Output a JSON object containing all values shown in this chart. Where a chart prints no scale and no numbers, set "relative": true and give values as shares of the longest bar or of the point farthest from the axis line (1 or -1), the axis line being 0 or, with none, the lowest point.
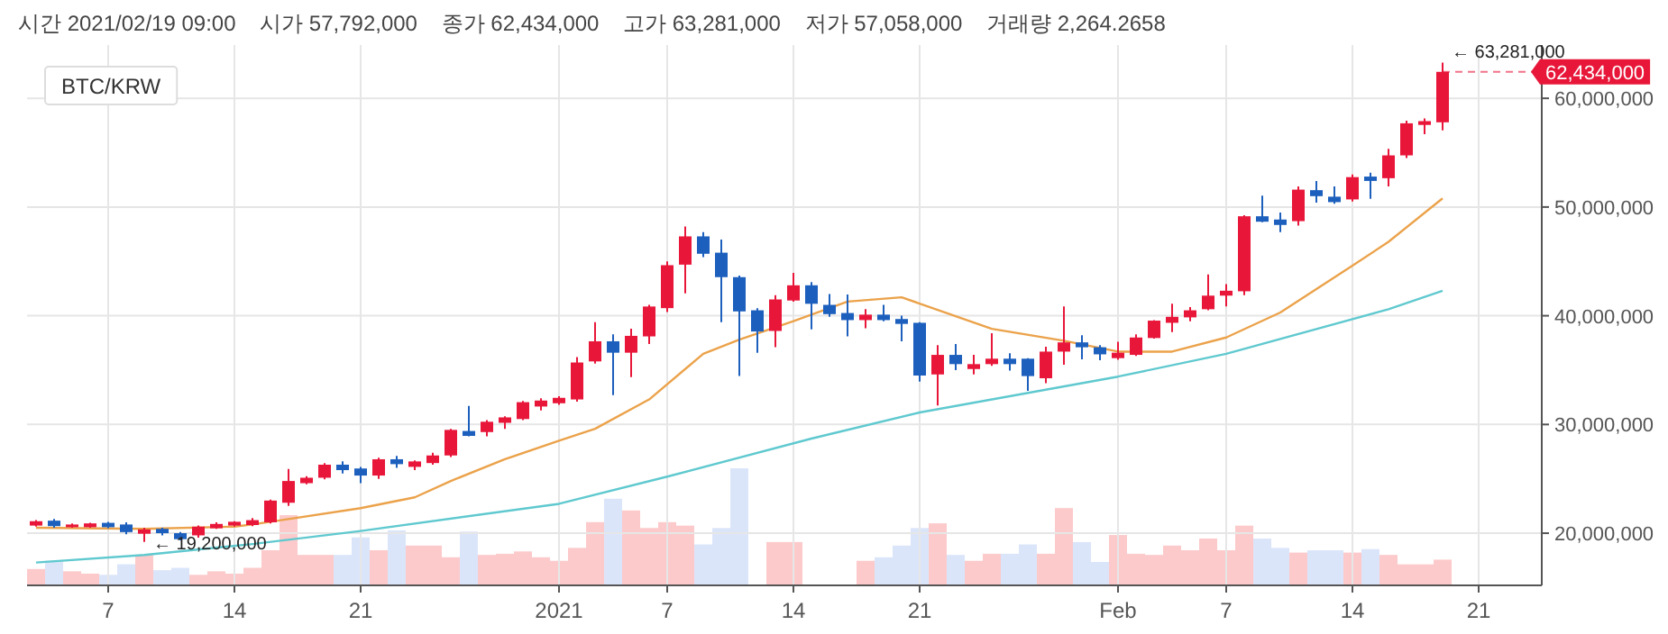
{
  "chart_data": [
    {
      "type": "candlestick",
      "title": "시간 2021/02/19 09:00    시가 57,792,000    종가 62,434,000    고가 63,281,000    저가 57,058,000    거래량 2,264.2658",
      "subtitle": "BTC/KRW",
      "x": [
        "2020-12-03",
        "2020-12-04",
        "2020-12-05",
        "2020-12-06",
        "2020-12-07",
        "2020-12-08",
        "2020-12-09",
        "2020-12-10",
        "2020-12-11",
        "2020-12-12",
        "2020-12-13",
        "2020-12-14",
        "2020-12-15",
        "2020-12-16",
        "2020-12-17",
        "2020-12-18",
        "2020-12-19",
        "2020-12-20",
        "2020-12-21",
        "2020-12-22",
        "2020-12-23",
        "2020-12-24",
        "2020-12-25",
        "2020-12-26",
        "2020-12-27",
        "2020-12-28",
        "2020-12-29",
        "2020-12-30",
        "2020-12-31",
        "2021-01-01",
        "2021-01-02",
        "2021-01-03",
        "2021-01-04",
        "2021-01-05",
        "2021-01-06",
        "2021-01-07",
        "2021-01-08",
        "2021-01-09",
        "2021-01-10",
        "2021-01-11",
        "2021-01-12",
        "2021-01-13",
        "2021-01-14",
        "2021-01-15",
        "2021-01-16",
        "2021-01-17",
        "2021-01-18",
        "2021-01-19",
        "2021-01-20",
        "2021-01-21",
        "2021-01-22",
        "2021-01-23",
        "2021-01-24",
        "2021-01-25",
        "2021-01-26",
        "2021-01-27",
        "2021-01-28",
        "2021-01-29",
        "2021-01-30",
        "2021-01-31",
        "2021-02-01",
        "2021-02-02",
        "2021-02-03",
        "2021-02-04",
        "2021-02-05",
        "2021-02-06",
        "2021-02-07",
        "2021-02-08",
        "2021-02-09",
        "2021-02-10",
        "2021-02-11",
        "2021-02-12",
        "2021-02-13",
        "2021-02-14",
        "2021-02-15",
        "2021-02-16",
        "2021-02-17",
        "2021-02-18",
        "2021-02-19"
      ],
      "xlim": [
        "2020-12-02T12:00",
        "2021-02-24T12:00"
      ],
      "xticks": [
        {
          "value": "2020-12-07",
          "label": "7"
        },
        {
          "value": "2020-12-14",
          "label": "14"
        },
        {
          "value": "2020-12-21",
          "label": "21"
        },
        {
          "value": "2021-01-01",
          "label": "2021"
        },
        {
          "value": "2021-01-07",
          "label": "7"
        },
        {
          "value": "2021-01-14",
          "label": "14"
        },
        {
          "value": "2021-01-21",
          "label": "21"
        },
        {
          "value": "2021-02-01",
          "label": "Feb"
        },
        {
          "value": "2021-02-07",
          "label": "7"
        },
        {
          "value": "2021-02-14",
          "label": "14"
        },
        {
          "value": "2021-02-21",
          "label": "21"
        }
      ],
      "ylim": [
        15200000,
        64900000
      ],
      "yticks": [
        {
          "value": 20000000,
          "label": "20,000,000"
        },
        {
          "value": 30000000,
          "label": "30,000,000"
        },
        {
          "value": 40000000,
          "label": "40,000,000"
        },
        {
          "value": 50000000,
          "label": "50,000,000"
        },
        {
          "value": 60000000,
          "label": "60,000,000"
        }
      ],
      "grid": true,
      "annotations": [
        {
          "text": "← 63,281,000",
          "x": "2021-02-19",
          "y": 63281000
        },
        {
          "text": "← 19,200,000",
          "x": "2020-12-09",
          "y": 19200000
        }
      ],
      "ref_lines": [
        {
          "axis": "y",
          "value": 62434000,
          "label": "62,434,000",
          "color": "#e8173a",
          "line_style": "dashed"
        }
      ],
      "series": [
        {
          "type": "line",
          "color": "#5fc9cf",
          "x": [
            "2020-12-03",
            "2020-12-09",
            "2020-12-15",
            "2020-12-21",
            "2021-01-01",
            "2021-01-07",
            "2021-01-15",
            "2021-01-21",
            "2021-02-01",
            "2021-02-07",
            "2021-02-16",
            "2021-02-19"
          ],
          "values": [
            17300000,
            18000000,
            19000000,
            20200000,
            22700000,
            25200000,
            28700000,
            31100000,
            34400000,
            36500000,
            40600000,
            42300000
          ]
        },
        {
          "type": "line",
          "color": "#eba24a",
          "x": [
            "2020-12-03",
            "2020-12-09",
            "2020-12-14",
            "2020-12-15",
            "2020-12-17",
            "2020-12-21",
            "2020-12-24",
            "2020-12-26",
            "2020-12-29",
            "2021-01-01",
            "2021-01-03",
            "2021-01-06",
            "2021-01-09",
            "2021-01-11",
            "2021-01-14",
            "2021-01-17",
            "2021-01-20",
            "2021-01-25",
            "2021-01-29",
            "2021-02-01",
            "2021-02-04",
            "2021-02-07",
            "2021-02-10",
            "2021-02-14",
            "2021-02-16",
            "2021-02-19"
          ],
          "values": [
            20500000,
            20400000,
            20600000,
            20800000,
            21300000,
            22300000,
            23300000,
            24800000,
            26800000,
            28500000,
            29600000,
            32300000,
            36500000,
            37800000,
            39500000,
            41300000,
            41700000,
            38800000,
            37700000,
            36700000,
            36700000,
            38000000,
            40300000,
            44600000,
            46800000,
            50800000
          ]
        },
        {
          "type": "candlestick",
          "ohlc": [
            [
              20700000,
              21200000,
              20600000,
              21100000
            ],
            [
              21150000,
              21300000,
              20500000,
              20650000
            ],
            [
              20550000,
              20900000,
              20500000,
              20800000
            ],
            [
              20550000,
              20950000,
              20500000,
              20900000
            ],
            [
              20950000,
              21050000,
              20450000,
              20550000
            ],
            [
              20800000,
              21000000,
              19900000,
              20100000
            ],
            [
              19950000,
              20500000,
              19200000,
              20350000
            ],
            [
              20400000,
              20500000,
              19800000,
              20000000
            ],
            [
              20000000,
              20100000,
              19350000,
              19450000
            ],
            [
              19800000,
              20700000,
              19600000,
              20600000
            ],
            [
              20450000,
              21000000,
              20400000,
              20850000
            ],
            [
              20700000,
              21100000,
              20600000,
              21050000
            ],
            [
              20750000,
              21400000,
              20650000,
              21200000
            ],
            [
              21000000,
              23100000,
              20900000,
              23000000
            ],
            [
              22800000,
              25900000,
              22500000,
              24800000
            ],
            [
              24600000,
              25250000,
              24500000,
              25100000
            ],
            [
              25100000,
              26450000,
              24950000,
              26300000
            ],
            [
              26300000,
              26600000,
              25500000,
              25800000
            ],
            [
              25950000,
              26100000,
              24600000,
              25300000
            ],
            [
              25300000,
              26950000,
              25000000,
              26800000
            ],
            [
              26800000,
              27100000,
              26000000,
              26350000
            ],
            [
              26100000,
              26700000,
              25800000,
              26600000
            ],
            [
              26450000,
              27400000,
              26300000,
              27150000
            ],
            [
              27150000,
              29600000,
              27000000,
              29500000
            ],
            [
              29400000,
              31700000,
              28900000,
              28950000
            ],
            [
              29300000,
              30400000,
              28900000,
              30250000
            ],
            [
              30150000,
              30750000,
              29600000,
              30650000
            ],
            [
              30500000,
              32150000,
              30400000,
              32050000
            ],
            [
              31650000,
              32400000,
              31300000,
              32200000
            ],
            [
              31950000,
              32600000,
              31800000,
              32450000
            ],
            [
              32300000,
              36200000,
              32100000,
              35700000
            ],
            [
              35800000,
              39400000,
              35600000,
              37650000
            ],
            [
              37650000,
              38300000,
              32700000,
              36600000
            ],
            [
              36600000,
              38800000,
              34350000,
              38150000
            ],
            [
              38100000,
              41000000,
              37400000,
              40850000
            ],
            [
              40700000,
              45000000,
              40350000,
              44650000
            ],
            [
              44700000,
              48200000,
              42050000,
              47300000
            ],
            [
              47300000,
              47700000,
              45400000,
              45700000
            ],
            [
              45800000,
              47000000,
              39400000,
              43550000
            ],
            [
              43550000,
              43700000,
              34450000,
              40400000
            ],
            [
              40500000,
              40700000,
              36600000,
              38550000
            ],
            [
              38600000,
              41900000,
              37100000,
              41500000
            ],
            [
              41400000,
              43950000,
              41300000,
              42800000
            ],
            [
              42800000,
              43100000,
              38750000,
              41100000
            ],
            [
              41000000,
              42000000,
              39900000,
              40150000
            ],
            [
              40250000,
              41950000,
              38100000,
              39600000
            ],
            [
              39600000,
              40600000,
              38850000,
              40100000
            ],
            [
              40100000,
              41000000,
              39500000,
              39600000
            ],
            [
              39700000,
              40000000,
              37650000,
              39250000
            ],
            [
              39350000,
              39400000,
              33950000,
              34500000
            ],
            [
              34600000,
              37300000,
              31750000,
              36400000
            ],
            [
              36400000,
              37400000,
              35000000,
              35550000
            ],
            [
              35100000,
              36400000,
              34600000,
              35550000
            ],
            [
              35550000,
              38400000,
              35400000,
              36050000
            ],
            [
              36050000,
              36550000,
              34950000,
              35550000
            ],
            [
              36050000,
              36100000,
              33100000,
              34450000
            ],
            [
              34250000,
              37150000,
              33800000,
              36700000
            ],
            [
              36700000,
              40850000,
              35500000,
              37550000
            ],
            [
              37550000,
              38200000,
              36000000,
              37100000
            ],
            [
              37100000,
              37300000,
              35900000,
              36450000
            ],
            [
              36100000,
              37600000,
              35950000,
              36600000
            ],
            [
              36400000,
              38300000,
              36300000,
              38000000
            ],
            [
              37950000,
              39600000,
              37900000,
              39550000
            ],
            [
              39350000,
              41100000,
              38500000,
              39900000
            ],
            [
              39850000,
              40800000,
              39500000,
              40500000
            ],
            [
              40600000,
              43800000,
              40500000,
              41850000
            ],
            [
              41850000,
              42900000,
              40850000,
              42300000
            ],
            [
              42250000,
              49250000,
              41900000,
              49150000
            ],
            [
              49150000,
              51050000,
              48600000,
              48650000
            ],
            [
              48850000,
              49500000,
              47700000,
              48350000
            ],
            [
              48700000,
              51900000,
              48300000,
              51600000
            ],
            [
              51550000,
              52400000,
              50400000,
              51000000
            ],
            [
              50950000,
              51900000,
              50300000,
              50450000
            ],
            [
              50700000,
              53000000,
              50500000,
              52750000
            ],
            [
              52800000,
              53150000,
              50750000,
              52400000
            ],
            [
              52650000,
              55350000,
              51900000,
              54750000
            ],
            [
              54750000,
              57950000,
              54500000,
              57700000
            ],
            [
              57550000,
              58150000,
              56700000,
              57900000
            ],
            [
              57792000,
              63281000,
              57058000,
              62434000
            ]
          ],
          "colors": [
            "#e8173a",
            "#1c5fbd",
            "#e8173a",
            "#e8173a",
            "#1c5fbd",
            "#1c5fbd",
            "#e8173a",
            "#1c5fbd",
            "#1c5fbd",
            "#e8173a",
            "#e8173a",
            "#e8173a",
            "#e8173a",
            "#e8173a",
            "#e8173a",
            "#e8173a",
            "#e8173a",
            "#1c5fbd",
            "#1c5fbd",
            "#e8173a",
            "#1c5fbd",
            "#e8173a",
            "#e8173a",
            "#e8173a",
            "#1c5fbd",
            "#e8173a",
            "#e8173a",
            "#e8173a",
            "#e8173a",
            "#e8173a",
            "#e8173a",
            "#e8173a",
            "#1c5fbd",
            "#e8173a",
            "#e8173a",
            "#e8173a",
            "#e8173a",
            "#1c5fbd",
            "#1c5fbd",
            "#1c5fbd",
            "#1c5fbd",
            "#e8173a",
            "#e8173a",
            "#1c5fbd",
            "#1c5fbd",
            "#1c5fbd",
            "#e8173a",
            "#1c5fbd",
            "#1c5fbd",
            "#1c5fbd",
            "#e8173a",
            "#1c5fbd",
            "#e8173a",
            "#e8173a",
            "#1c5fbd",
            "#1c5fbd",
            "#e8173a",
            "#e8173a",
            "#1c5fbd",
            "#1c5fbd",
            "#e8173a",
            "#e8173a",
            "#e8173a",
            "#e8173a",
            "#e8173a",
            "#e8173a",
            "#e8173a",
            "#e8173a",
            "#1c5fbd",
            "#1c5fbd",
            "#e8173a",
            "#1c5fbd",
            "#1c5fbd",
            "#e8173a",
            "#1c5fbd",
            "#e8173a",
            "#e8173a",
            "#e8173a",
            "#e8173a"
          ]
        }
      ]
    },
    {
      "type": "bar",
      "relative": true,
      "xlim": [
        "2020-12-02T12:00",
        "2021-02-24T12:00"
      ],
      "x": [
        "2020-12-03",
        "2020-12-04",
        "2020-12-05",
        "2020-12-06",
        "2020-12-07",
        "2020-12-08",
        "2020-12-09",
        "2020-12-10",
        "2020-12-11",
        "2020-12-12",
        "2020-12-13",
        "2020-12-14",
        "2020-12-15",
        "2020-12-16",
        "2020-12-17",
        "2020-12-18",
        "2020-12-19",
        "2020-12-20",
        "2020-12-21",
        "2020-12-22",
        "2020-12-23",
        "2020-12-24",
        "2020-12-25",
        "2020-12-26",
        "2020-12-27",
        "2020-12-28",
        "2020-12-29",
        "2020-12-30",
        "2020-12-31",
        "2021-01-01",
        "2021-01-02",
        "2021-01-03",
        "2021-01-04",
        "2021-01-05",
        "2021-01-06",
        "2021-01-07",
        "2021-01-08",
        "2021-01-09",
        "2021-01-10",
        "2021-01-11",
        "2021-01-12",
        "2021-01-13",
        "2021-01-14",
        "2021-01-15",
        "2021-01-16",
        "2021-01-17",
        "2021-01-18",
        "2021-01-19",
        "2021-01-20",
        "2021-01-21",
        "2021-01-22",
        "2021-01-23",
        "2021-01-24",
        "2021-01-25",
        "2021-01-26",
        "2021-01-27",
        "2021-01-28",
        "2021-01-29",
        "2021-01-30",
        "2021-01-31",
        "2021-02-01",
        "2021-02-02",
        "2021-02-03",
        "2021-02-04",
        "2021-02-05",
        "2021-02-06",
        "2021-02-07",
        "2021-02-08",
        "2021-02-09",
        "2021-02-10",
        "2021-02-11",
        "2021-02-12",
        "2021-02-13",
        "2021-02-14",
        "2021-02-15",
        "2021-02-16",
        "2021-02-17",
        "2021-02-18",
        "2021-02-19"
      ],
      "values": [
        0.14,
        0.21,
        0.12,
        0.1,
        0.09,
        0.18,
        0.26,
        0.13,
        0.15,
        0.09,
        0.12,
        0.1,
        0.15,
        0.3,
        0.6,
        0.26,
        0.26,
        0.26,
        0.41,
        0.3,
        0.47,
        0.34,
        0.34,
        0.24,
        0.46,
        0.26,
        0.27,
        0.29,
        0.24,
        0.21,
        0.32,
        0.54,
        0.74,
        0.64,
        0.49,
        0.54,
        0.51,
        0.35,
        0.49,
        1,
        null,
        0.37,
        0.37,
        null,
        null,
        null,
        0.21,
        0.24,
        0.34,
        0.49,
        0.53,
        0.26,
        0.21,
        0.27,
        0.27,
        0.35,
        0.27,
        0.66,
        0.37,
        0.2,
        0.43,
        0.27,
        0.26,
        0.34,
        0.3,
        0.4,
        0.3,
        0.51,
        0.4,
        0.32,
        0.28,
        0.3,
        0.3,
        0.28,
        0.31,
        0.26,
        0.18,
        0.18,
        0.22
      ],
      "colors": [
        "#fccacb",
        "#dbe5fa",
        "#fccacb",
        "#fccacb",
        "#dbe5fa",
        "#dbe5fa",
        "#fccacb",
        "#dbe5fa",
        "#dbe5fa",
        "#fccacb",
        "#fccacb",
        "#fccacb",
        "#fccacb",
        "#fccacb",
        "#fccacb",
        "#fccacb",
        "#fccacb",
        "#dbe5fa",
        "#dbe5fa",
        "#fccacb",
        "#dbe5fa",
        "#fccacb",
        "#fccacb",
        "#fccacb",
        "#dbe5fa",
        "#fccacb",
        "#fccacb",
        "#fccacb",
        "#fccacb",
        "#fccacb",
        "#fccacb",
        "#fccacb",
        "#dbe5fa",
        "#fccacb",
        "#fccacb",
        "#fccacb",
        "#fccacb",
        "#dbe5fa",
        "#dbe5fa",
        "#dbe5fa",
        null,
        "#fccacb",
        "#fccacb",
        null,
        null,
        null,
        "#fccacb",
        "#dbe5fa",
        "#dbe5fa",
        "#dbe5fa",
        "#fccacb",
        "#dbe5fa",
        "#fccacb",
        "#fccacb",
        "#dbe5fa",
        "#dbe5fa",
        "#fccacb",
        "#fccacb",
        "#dbe5fa",
        "#dbe5fa",
        "#fccacb",
        "#fccacb",
        "#fccacb",
        "#fccacb",
        "#fccacb",
        "#fccacb",
        "#fccacb",
        "#fccacb",
        "#dbe5fa",
        "#dbe5fa",
        "#fccacb",
        "#dbe5fa",
        "#dbe5fa",
        "#fccacb",
        "#dbe5fa",
        "#fccacb",
        "#fccacb",
        "#fccacb",
        "#fccacb"
      ]
    }
  ]
}
